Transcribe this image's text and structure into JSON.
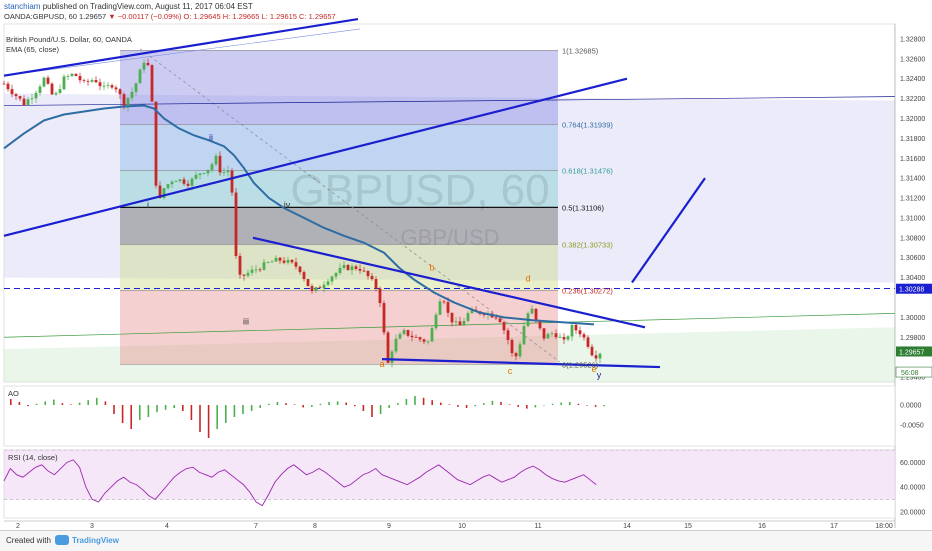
{
  "header": {
    "publisher_user": "stanchiam",
    "publisher_rest": " published on TradingView.com, August 11, 2017 06:04 EST",
    "symbol_line": "OANDA:GBPUSD, 60",
    "last_price": "1.29657",
    "change": "▼ −0.00117 (−0.09%)",
    "ohlc": "O: 1.29645 H: 1.29665 L: 1.29615 C: 1.29657",
    "pair_title": "British Pound/U.S. Dollar, 60, OANDA",
    "ema_label": "EMA (65, close)"
  },
  "watermark": {
    "symbol": "GBPUSD, 60",
    "pair": "GBP/USD"
  },
  "price_axis": {
    "ticks": [
      "1.32800",
      "1.32600",
      "1.32400",
      "1.32200",
      "1.32000",
      "1.31800",
      "1.31600",
      "1.31400",
      "1.31200",
      "1.31000",
      "1.30800",
      "1.30600",
      "1.30400",
      "1.30000",
      "1.29800",
      "1.29400"
    ],
    "tag_current_line": "1.30288",
    "tag_last": "1.29657",
    "tag_countdown": "56:08"
  },
  "time_axis": {
    "ticks": [
      "2",
      "3",
      "4",
      "7",
      "8",
      "9",
      "10",
      "11",
      "14",
      "15",
      "16",
      "17",
      "18:00"
    ]
  },
  "fibonacci": [
    {
      "label": "1(1.32685)"
    },
    {
      "label": "0.764(1.31939)"
    },
    {
      "label": "0.618(1.31476)"
    },
    {
      "label": "0.5(1.31106)"
    },
    {
      "label": "0.382(1.30733)"
    },
    {
      "label": "0.236(1.30272)"
    },
    {
      "label": "0(1.29526)"
    }
  ],
  "wave_labels": [
    "i",
    "ii",
    "iii",
    "iv",
    "a",
    "b",
    "c",
    "d",
    "e",
    "y"
  ],
  "ao": {
    "label": "AO",
    "ticks": [
      "0.0000",
      "-0.0050"
    ]
  },
  "rsi": {
    "label": "RSI (14, close)",
    "ticks": [
      "60.0000",
      "40.0000",
      "20.0000"
    ]
  },
  "footer": {
    "created_with": "Created with",
    "brand": "TradingView"
  },
  "colors": {
    "wave_lines": "#1a1fcf",
    "ema": "#2e6da4",
    "dashed": "#1a1fcf",
    "bull": "#4caf50",
    "bear": "#c62828"
  },
  "chart_data": [
    {
      "type": "candlestick",
      "title": "British Pound/U.S. Dollar, 60, OANDA",
      "symbol": "OANDA:GBPUSD",
      "x_ticks": [
        "2",
        "3",
        "4",
        "7",
        "8",
        "9",
        "10",
        "11",
        "14",
        "15",
        "16",
        "17",
        "18:00"
      ],
      "y_ticks": [
        1.328,
        1.326,
        1.324,
        1.322,
        1.32,
        1.318,
        1.316,
        1.314,
        1.312,
        1.31,
        1.308,
        1.306,
        1.304,
        1.3,
        1.298,
        1.294
      ],
      "ylim": [
        1.2935,
        1.3295
      ],
      "price_path": [
        [
          0,
          1.3235
        ],
        [
          10,
          1.3225
        ],
        [
          20,
          1.3215
        ],
        [
          30,
          1.3225
        ],
        [
          40,
          1.324
        ],
        [
          50,
          1.322
        ],
        [
          60,
          1.324
        ],
        [
          70,
          1.3245
        ],
        [
          80,
          1.3235
        ],
        [
          90,
          1.324
        ],
        [
          100,
          1.323
        ],
        [
          110,
          1.3235
        ],
        [
          120,
          1.3215
        ],
        [
          130,
          1.323
        ],
        [
          140,
          1.3258
        ],
        [
          146,
          1.325
        ],
        [
          150,
          1.318
        ],
        [
          152,
          1.3135
        ],
        [
          156,
          1.3118
        ],
        [
          160,
          1.313
        ],
        [
          170,
          1.314
        ],
        [
          185,
          1.3135
        ],
        [
          195,
          1.3145
        ],
        [
          205,
          1.315
        ],
        [
          212,
          1.316
        ],
        [
          216,
          1.3148
        ],
        [
          222,
          1.3145
        ],
        [
          227,
          1.3152
        ],
        [
          229,
          1.31
        ],
        [
          232,
          1.306
        ],
        [
          236,
          1.304
        ],
        [
          245,
          1.3045
        ],
        [
          255,
          1.305
        ],
        [
          265,
          1.3055
        ],
        [
          275,
          1.3058
        ],
        [
          285,
          1.3055
        ],
        [
          295,
          1.305
        ],
        [
          300,
          1.304
        ],
        [
          308,
          1.3025
        ],
        [
          315,
          1.303
        ],
        [
          325,
          1.304
        ],
        [
          340,
          1.305
        ],
        [
          355,
          1.305
        ],
        [
          365,
          1.304
        ],
        [
          372,
          1.303
        ],
        [
          378,
          1.301
        ],
        [
          381,
          1.297
        ],
        [
          383,
          1.295
        ],
        [
          390,
          1.2975
        ],
        [
          400,
          1.2985
        ],
        [
          410,
          1.298
        ],
        [
          425,
          1.2975
        ],
        [
          433,
          1.301
        ],
        [
          438,
          1.3025
        ],
        [
          445,
          1.3
        ],
        [
          455,
          1.299
        ],
        [
          465,
          1.3005
        ],
        [
          480,
          1.3005
        ],
        [
          495,
          1.3
        ],
        [
          505,
          1.2975
        ],
        [
          510,
          1.2955
        ],
        [
          515,
          1.297
        ],
        [
          522,
          1.3
        ],
        [
          527,
          1.301
        ],
        [
          532,
          1.2995
        ],
        [
          540,
          1.298
        ],
        [
          550,
          1.2985
        ],
        [
          560,
          1.2975
        ],
        [
          568,
          1.299
        ],
        [
          576,
          1.2985
        ],
        [
          583,
          1.2975
        ],
        [
          590,
          1.296
        ],
        [
          596,
          1.2965
        ]
      ],
      "ema_65": [
        [
          0,
          1.317
        ],
        [
          20,
          1.3185
        ],
        [
          40,
          1.3198
        ],
        [
          60,
          1.3204
        ],
        [
          80,
          1.3207
        ],
        [
          100,
          1.321
        ],
        [
          120,
          1.3212
        ],
        [
          140,
          1.3213
        ],
        [
          150,
          1.321
        ],
        [
          160,
          1.32
        ],
        [
          175,
          1.319
        ],
        [
          190,
          1.3183
        ],
        [
          205,
          1.3178
        ],
        [
          220,
          1.3172
        ],
        [
          230,
          1.3163
        ],
        [
          240,
          1.315
        ],
        [
          250,
          1.3135
        ],
        [
          265,
          1.312
        ],
        [
          280,
          1.311
        ],
        [
          300,
          1.31
        ],
        [
          320,
          1.309
        ],
        [
          340,
          1.3082
        ],
        [
          360,
          1.3075
        ],
        [
          380,
          1.3065
        ],
        [
          395,
          1.305
        ],
        [
          410,
          1.3038
        ],
        [
          430,
          1.3025
        ],
        [
          450,
          1.3015
        ],
        [
          475,
          1.3005
        ],
        [
          500,
          1.3
        ],
        [
          530,
          1.2997
        ],
        [
          560,
          1.2995
        ],
        [
          590,
          1.2993
        ]
      ],
      "fibonacci_levels": [
        {
          "ratio": 1,
          "price": 1.32685
        },
        {
          "ratio": 0.764,
          "price": 1.31939
        },
        {
          "ratio": 0.618,
          "price": 1.31476
        },
        {
          "ratio": 0.5,
          "price": 1.31106
        },
        {
          "ratio": 0.382,
          "price": 1.30733
        },
        {
          "ratio": 0.236,
          "price": 1.30272
        },
        {
          "ratio": 0,
          "price": 1.29526
        }
      ],
      "horizontal_level": 1.30288,
      "last_price": 1.29657
    },
    {
      "type": "bar",
      "title": "AO",
      "y_ticks": [
        0.0,
        -0.005
      ],
      "values": [
        1,
        0.5,
        -0.2,
        0.2,
        0.6,
        0.9,
        0.3,
        0.1,
        0.4,
        0.8,
        1.2,
        0.6,
        -1.5,
        -3,
        -4,
        -2.5,
        -2,
        -1.2,
        -0.8,
        -0.5,
        -1,
        -2.5,
        -4.5,
        -5.5,
        -4,
        -3,
        -2,
        -1.5,
        -1,
        -0.5,
        0.2,
        0.5,
        0.3,
        0.1,
        -0.4,
        -0.3,
        0.2,
        0.5,
        0.6,
        0.4,
        -0.2,
        -1,
        -2,
        -1.5,
        -0.5,
        0.3,
        1,
        1.5,
        1.2,
        0.8,
        0.4,
        0.1,
        -0.3,
        -0.5,
        -0.2,
        0.3,
        0.7,
        0.5,
        0.1,
        -0.3,
        -0.6,
        -0.4,
        -0.1,
        0.2,
        0.4,
        0.5,
        0.2,
        -0.1,
        -0.3,
        -0.2
      ]
    },
    {
      "type": "line",
      "title": "RSI (14, close)",
      "y_ticks": [
        60,
        40,
        20
      ],
      "ylim": [
        15,
        70
      ],
      "values": [
        45,
        55,
        50,
        48,
        52,
        56,
        58,
        53,
        50,
        55,
        60,
        62,
        56,
        40,
        30,
        28,
        35,
        40,
        45,
        48,
        44,
        42,
        38,
        33,
        30,
        36,
        42,
        48,
        52,
        55,
        56,
        52,
        50,
        48,
        52,
        54,
        50,
        46,
        42,
        36,
        28,
        25,
        34,
        44,
        50,
        55,
        58,
        54,
        50,
        52,
        55,
        52,
        48,
        44,
        40,
        42,
        46,
        50,
        52,
        55,
        50,
        48,
        46,
        44,
        42,
        45,
        48,
        52,
        55,
        58,
        54,
        50,
        46,
        44,
        42,
        45,
        48,
        50,
        47,
        44,
        46,
        48,
        52,
        55,
        57,
        54,
        50,
        47,
        45,
        44,
        46,
        48,
        50,
        46,
        42
      ]
    }
  ]
}
